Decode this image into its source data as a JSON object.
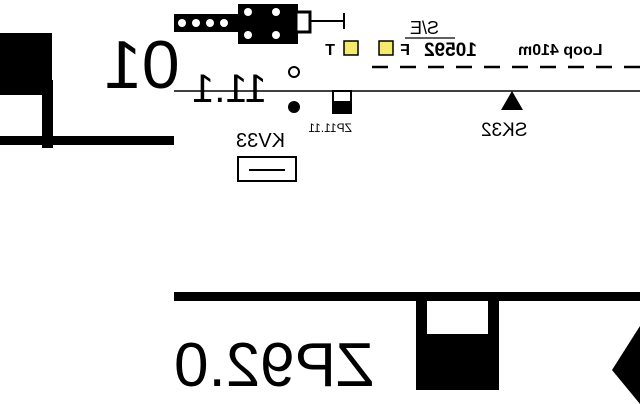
{
  "schematic": {
    "overview_panel": {
      "labels": {
        "timing_point": "ZP11.11",
        "distance_main": "11.1",
        "signal_id": "SK32",
        "se_label": "S/E",
        "loop_label": "Loop 410m",
        "route_number": "10592",
        "marker_f": "F",
        "marker_t": "T",
        "track_circuit": "KV33"
      },
      "colors": {
        "marker_fill": "#f5ea6e",
        "ink": "#000000",
        "background": "#ffffff"
      }
    },
    "zoomed_panel": {
      "labels": {
        "big_number": "01",
        "big_timing_point": "ZP92.0"
      }
    }
  }
}
